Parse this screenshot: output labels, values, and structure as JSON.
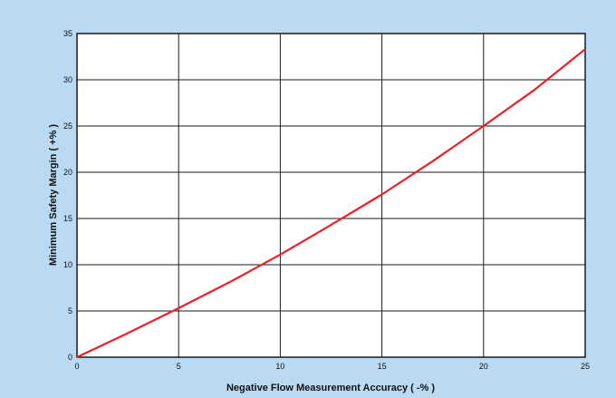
{
  "chart_data": {
    "type": "line",
    "title": "",
    "xlabel": "Negative Flow Measurement Accuracy ( -% )",
    "ylabel": "Minimum Safety Margin ( +% )",
    "xlim": [
      0,
      25
    ],
    "ylim": [
      0,
      35
    ],
    "x_ticks": [
      "0",
      "5",
      "10",
      "15",
      "20",
      "25"
    ],
    "y_ticks": [
      "0",
      "5",
      "10",
      "15",
      "20",
      "25",
      "30",
      "35"
    ],
    "grid": true,
    "legend": "none",
    "series": [
      {
        "color": "#e8202a",
        "x": [
          0,
          2.5,
          5,
          7.5,
          10,
          12.5,
          15,
          17.5,
          20,
          22.5,
          25
        ],
        "y": [
          0,
          2.6,
          5.3,
          8.1,
          11.1,
          14.3,
          17.6,
          21.2,
          25.0,
          28.9,
          33.3
        ]
      }
    ],
    "colors": {
      "background": "#b9daf2",
      "plot_background": "#ffffff",
      "grid": "#1a1a1a"
    }
  }
}
